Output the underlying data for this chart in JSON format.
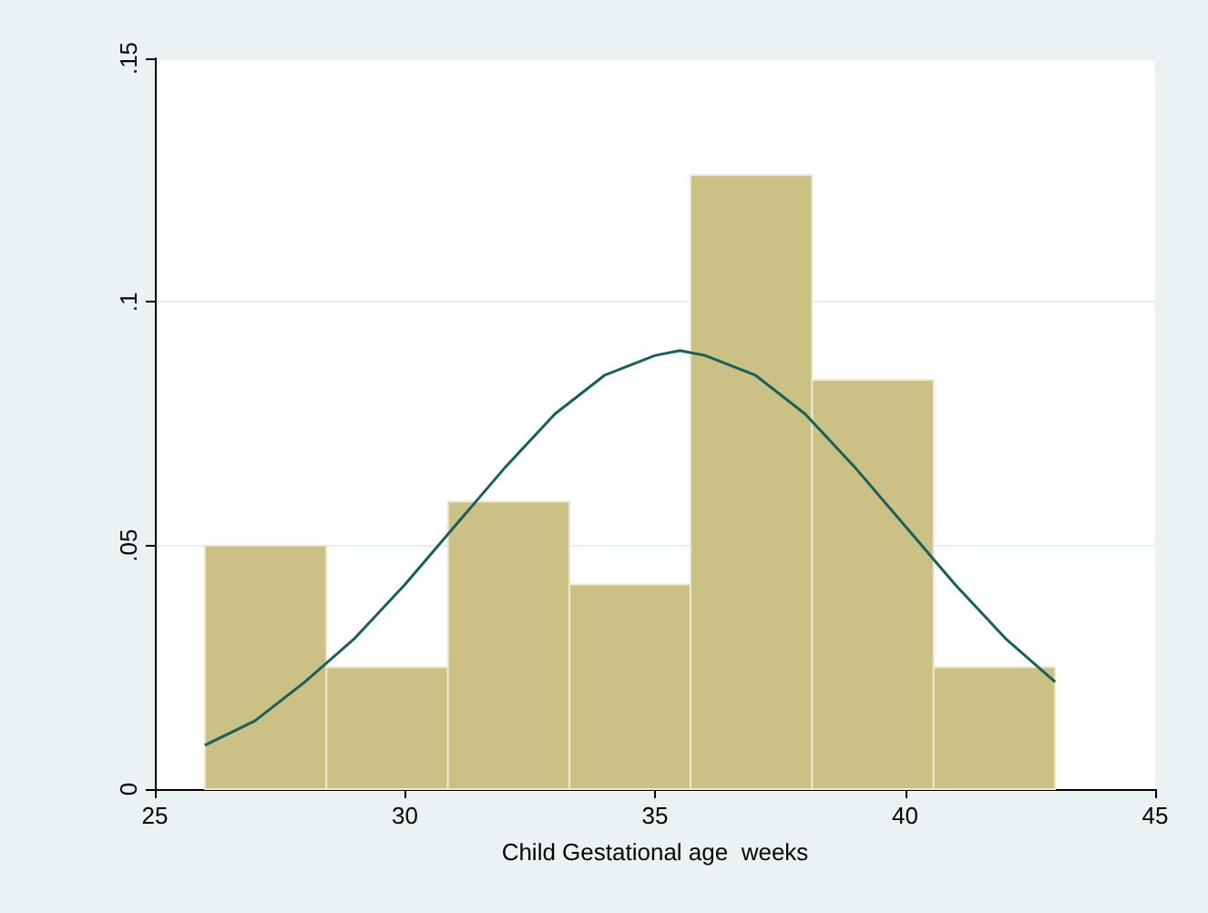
{
  "chart_data": {
    "type": "histogram",
    "xlabel": "Child Gestational age  weeks",
    "bins": [
      26,
      28.43,
      30.86,
      33.29,
      35.71,
      38.14,
      40.57,
      43
    ],
    "values": [
      0.05,
      0.025,
      0.059,
      0.042,
      0.126,
      0.084,
      0.025
    ],
    "color": "#cbc185",
    "series": [
      {
        "type": "line",
        "color": "#1b5f5b",
        "x": [
          26,
          27,
          28,
          29,
          30,
          31,
          32,
          33,
          34,
          35,
          35.5,
          36,
          37,
          38,
          39,
          40,
          41,
          42,
          43
        ],
        "values": [
          0.009,
          0.014,
          0.022,
          0.031,
          0.042,
          0.054,
          0.066,
          0.077,
          0.085,
          0.089,
          0.09,
          0.089,
          0.085,
          0.077,
          0.066,
          0.054,
          0.042,
          0.031,
          0.022
        ]
      }
    ],
    "xlim": [
      25,
      45
    ],
    "xticks": [
      25,
      30,
      35,
      40,
      45
    ],
    "ylim": [
      0,
      0.15
    ],
    "yticks": [
      {
        "value": 0,
        "label": "0"
      },
      {
        "value": 0.05,
        "label": ".05"
      },
      {
        "value": 0.1,
        "label": ".1"
      },
      {
        "value": 0.15,
        "label": ".15"
      }
    ],
    "grid": "y",
    "marker": "none",
    "line_style": "solid"
  }
}
